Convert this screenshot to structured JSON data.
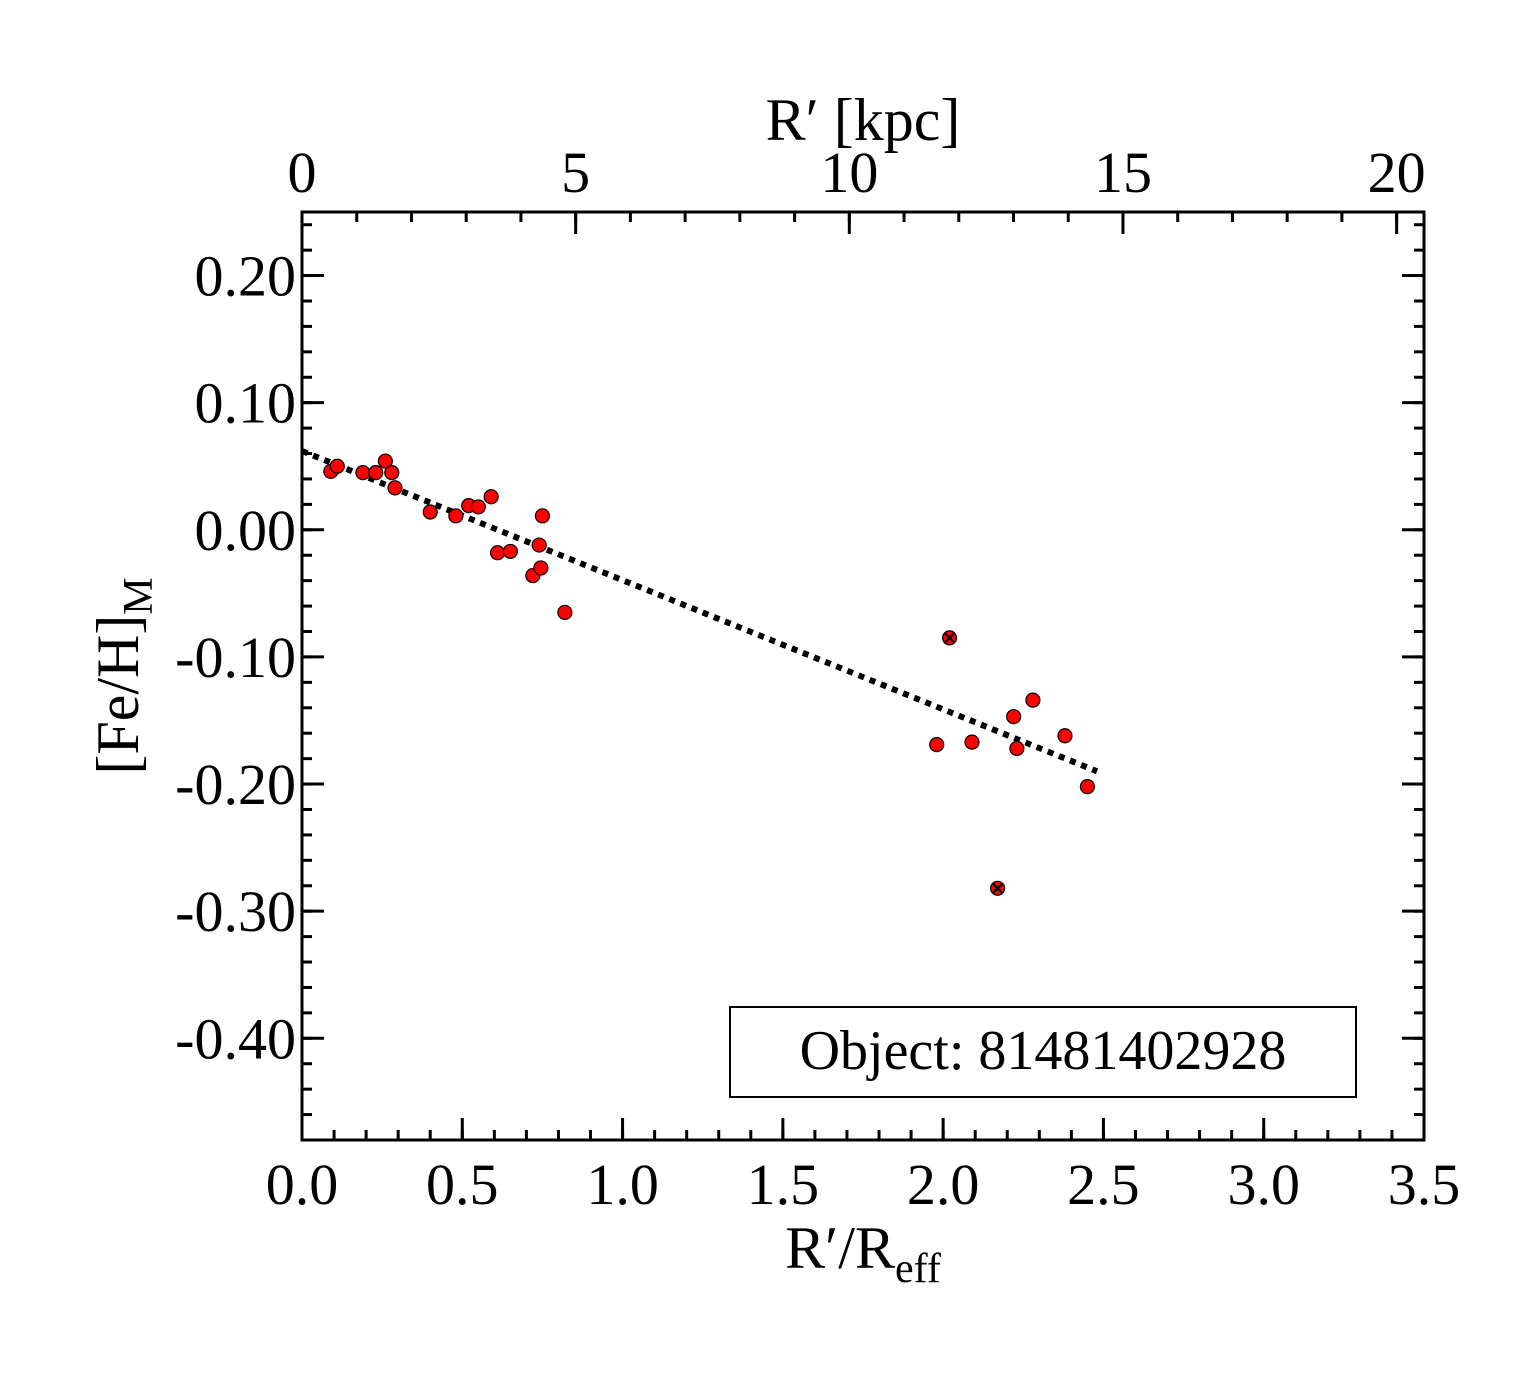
{
  "chart_data": {
    "type": "scatter",
    "title": "",
    "xlabel": {
      "main": "R′/R",
      "sub": "eff"
    },
    "ylabel": {
      "main": "[Fe/H]",
      "sub": "M"
    },
    "top_xlabel": "R′ [kpc]",
    "xlim": [
      0.0,
      3.5
    ],
    "ylim": [
      -0.48,
      0.25
    ],
    "top_xlim": [
      0,
      20.5
    ],
    "x_ticks": [
      "0.0",
      "0.5",
      "1.0",
      "1.5",
      "2.0",
      "2.5",
      "3.0",
      "3.5"
    ],
    "x_tick_values": [
      0.0,
      0.5,
      1.0,
      1.5,
      2.0,
      2.5,
      3.0,
      3.5
    ],
    "y_ticks": [
      "0.20",
      "0.10",
      "0.00",
      "-0.10",
      "-0.20",
      "-0.30",
      "-0.40"
    ],
    "y_tick_values": [
      0.2,
      0.1,
      0.0,
      -0.1,
      -0.2,
      -0.3,
      -0.4
    ],
    "top_x_ticks": [
      "0",
      "5",
      "10",
      "15",
      "20"
    ],
    "top_x_tick_values": [
      0,
      5,
      10,
      15,
      20
    ],
    "annotation": "Object: 81481402928",
    "colors": {
      "points": "#ff0000",
      "point_edge": "#000000",
      "fit_line": "#000000"
    },
    "series": [
      {
        "marker": "circle",
        "x": [
          0.09,
          0.11,
          0.19,
          0.23,
          0.26,
          0.28,
          0.29,
          0.4,
          0.48,
          0.52,
          0.55,
          0.59,
          0.61,
          0.65,
          0.72,
          0.74,
          0.745,
          0.75,
          0.82,
          1.98,
          2.09,
          2.22,
          2.23,
          2.28,
          2.38,
          2.45
        ],
        "y": [
          0.046,
          0.05,
          0.045,
          0.045,
          0.054,
          0.045,
          0.033,
          0.014,
          0.011,
          0.019,
          0.018,
          0.026,
          -0.018,
          -0.017,
          -0.036,
          -0.012,
          -0.03,
          0.011,
          -0.065,
          -0.169,
          -0.167,
          -0.147,
          -0.172,
          -0.134,
          -0.162,
          -0.202
        ]
      },
      {
        "marker": "circle-x",
        "x": [
          2.02,
          2.17
        ],
        "y": [
          -0.085,
          -0.282
        ]
      },
      {
        "marker": "dotted-line",
        "x": [
          0.0,
          2.48
        ],
        "y": [
          0.062,
          -0.19
        ]
      }
    ]
  }
}
